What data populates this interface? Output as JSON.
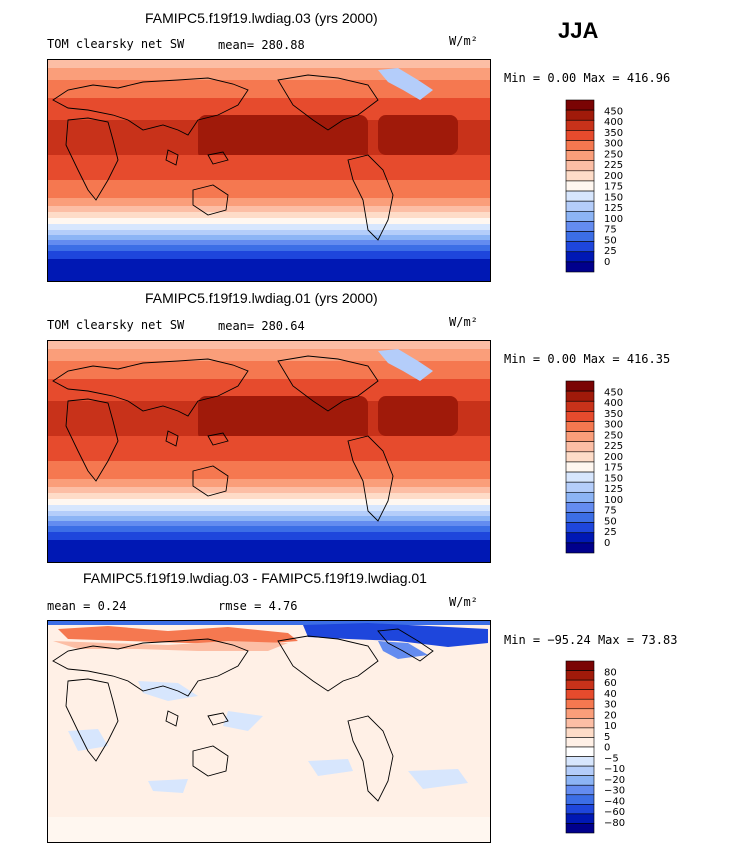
{
  "season": "JJA",
  "colors": {
    "abs": [
      "#00008c",
      "#0018b4",
      "#1e46dc",
      "#3c6ee6",
      "#648cf0",
      "#8cb4f5",
      "#b4cdfa",
      "#d7e6fd",
      "#fff7f0",
      "#fedcc8",
      "#fcbea5",
      "#fa9e7a",
      "#f57850",
      "#e64b2d",
      "#c8321a",
      "#a01a0a",
      "#7a0404"
    ],
    "diff": [
      "#00008c",
      "#0018b4",
      "#1e46dc",
      "#3c6ee6",
      "#648cf0",
      "#8cb4f5",
      "#b4cdfa",
      "#d7e6fd",
      "#ffffff",
      "#fff0e6",
      "#fedcc8",
      "#fcbea5",
      "#fa9e7a",
      "#f57850",
      "#e64b2d",
      "#c8321a",
      "#a01a0a",
      "#7a0404"
    ]
  },
  "panels": [
    {
      "title": "FAMIPC5.f19f19.lwdiag.03 (yrs 2000)",
      "left_label": "TOM clearsky net SW",
      "mean_label": "mean=",
      "mean_value": "280.88",
      "units": "W/m²",
      "min_label": "Min =",
      "min_value": "0.00",
      "max_label": "Max =",
      "max_value": "416.96",
      "colorbar_labels": [
        "450",
        "400",
        "350",
        "300",
        "250",
        "225",
        "200",
        "175",
        "150",
        "125",
        "100",
        "75",
        "50",
        "25",
        "0"
      ]
    },
    {
      "title": "FAMIPC5.f19f19.lwdiag.01 (yrs 2000)",
      "left_label": "TOM clearsky net SW",
      "mean_label": "mean=",
      "mean_value": "280.64",
      "units": "W/m²",
      "min_label": "Min =",
      "min_value": "0.00",
      "max_label": "Max =",
      "max_value": "416.35",
      "colorbar_labels": [
        "450",
        "400",
        "350",
        "300",
        "250",
        "225",
        "200",
        "175",
        "150",
        "125",
        "100",
        "75",
        "50",
        "25",
        "0"
      ]
    },
    {
      "title": "FAMIPC5.f19f19.lwdiag.03 - FAMIPC5.f19f19.lwdiag.01",
      "mean_label": "mean =",
      "mean_value": "0.24",
      "rmse_label": "rmse =",
      "rmse_value": "4.76",
      "units": "W/m²",
      "min_label": "Min =",
      "min_value": "−95.24",
      "max_label": "Max =",
      "max_value": "73.83",
      "colorbar_labels": [
        "80",
        "60",
        "40",
        "30",
        "20",
        "10",
        "5",
        "0",
        "−5",
        "−10",
        "−20",
        "−30",
        "−40",
        "−60",
        "−80"
      ]
    }
  ]
}
